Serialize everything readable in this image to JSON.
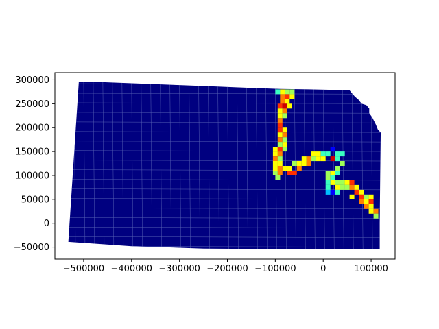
{
  "map": {
    "projection_extent": {
      "xlim": [
        -560000,
        150000
      ],
      "ylim": [
        -75000,
        315000
      ]
    },
    "colors": {
      "background": "#000080",
      "grid_lines": "#6b78c0",
      "axes": "#000000",
      "colormap": [
        "#000080",
        "#0000ff",
        "#00bfff",
        "#3affc0",
        "#a0ff58",
        "#ffff00",
        "#ff8000",
        "#ff3000",
        "#cc0000"
      ]
    },
    "outline": [
      [
        -510000,
        296000
      ],
      [
        -460000,
        295000
      ],
      [
        -380000,
        292000
      ],
      [
        -300000,
        289000
      ],
      [
        -220000,
        286000
      ],
      [
        -150000,
        283000
      ],
      [
        -90000,
        281000
      ],
      [
        -30000,
        280000
      ],
      [
        20000,
        279000
      ],
      [
        55000,
        278000
      ],
      [
        60000,
        272000
      ],
      [
        66000,
        265000
      ],
      [
        74000,
        258000
      ],
      [
        80000,
        250000
      ],
      [
        90000,
        247000
      ],
      [
        96000,
        240000
      ],
      [
        96000,
        230000
      ],
      [
        102000,
        222000
      ],
      [
        110000,
        206000
      ],
      [
        114000,
        196000
      ],
      [
        120000,
        190000
      ],
      [
        120000,
        185000
      ],
      [
        119000,
        100000
      ],
      [
        118000,
        0
      ],
      [
        118000,
        -54000
      ],
      [
        30000,
        -54000
      ],
      [
        -100000,
        -54000
      ],
      [
        -250000,
        -53000
      ],
      [
        -400000,
        -48000
      ],
      [
        -532000,
        -39000
      ]
    ],
    "corridor_cells": [
      {
        "x": -95000,
        "y": 275000,
        "v": 0.35
      },
      {
        "x": -85000,
        "y": 275000,
        "v": 0.65
      },
      {
        "x": -75000,
        "y": 275000,
        "v": 0.55
      },
      {
        "x": -65000,
        "y": 275000,
        "v": 0.45
      },
      {
        "x": -85000,
        "y": 265000,
        "v": 0.72
      },
      {
        "x": -75000,
        "y": 265000,
        "v": 0.85
      },
      {
        "x": -65000,
        "y": 265000,
        "v": 0.62
      },
      {
        "x": -85000,
        "y": 255000,
        "v": 0.78
      },
      {
        "x": -75000,
        "y": 255000,
        "v": 0.68
      },
      {
        "x": -90000,
        "y": 245000,
        "v": 0.88
      },
      {
        "x": -80000,
        "y": 245000,
        "v": 0.95
      },
      {
        "x": -70000,
        "y": 245000,
        "v": 0.6
      },
      {
        "x": -90000,
        "y": 235000,
        "v": 0.65
      },
      {
        "x": -80000,
        "y": 235000,
        "v": 0.8
      },
      {
        "x": -90000,
        "y": 225000,
        "v": 0.62
      },
      {
        "x": -80000,
        "y": 225000,
        "v": 0.52
      },
      {
        "x": -90000,
        "y": 215000,
        "v": 0.7
      },
      {
        "x": -90000,
        "y": 205000,
        "v": 0.82
      },
      {
        "x": -90000,
        "y": 195000,
        "v": 0.86
      },
      {
        "x": -80000,
        "y": 195000,
        "v": 0.6
      },
      {
        "x": -90000,
        "y": 185000,
        "v": 0.62
      },
      {
        "x": -80000,
        "y": 185000,
        "v": 0.72
      },
      {
        "x": -90000,
        "y": 175000,
        "v": 0.78
      },
      {
        "x": -80000,
        "y": 175000,
        "v": 0.55
      },
      {
        "x": -90000,
        "y": 165000,
        "v": 0.5
      },
      {
        "x": -80000,
        "y": 165000,
        "v": 0.62
      },
      {
        "x": -100000,
        "y": 155000,
        "v": 0.58
      },
      {
        "x": -90000,
        "y": 155000,
        "v": 0.88
      },
      {
        "x": -80000,
        "y": 155000,
        "v": 0.45
      },
      {
        "x": -100000,
        "y": 145000,
        "v": 0.62
      },
      {
        "x": -90000,
        "y": 145000,
        "v": 0.7
      },
      {
        "x": -100000,
        "y": 135000,
        "v": 0.72
      },
      {
        "x": -90000,
        "y": 135000,
        "v": 0.55
      },
      {
        "x": -100000,
        "y": 125000,
        "v": 0.6
      },
      {
        "x": -90000,
        "y": 125000,
        "v": 0.62
      },
      {
        "x": -100000,
        "y": 115000,
        "v": 0.58
      },
      {
        "x": -90000,
        "y": 115000,
        "v": 0.7
      },
      {
        "x": -100000,
        "y": 105000,
        "v": 0.48
      },
      {
        "x": -90000,
        "y": 105000,
        "v": 0.72
      },
      {
        "x": -95000,
        "y": 95000,
        "v": 0.55
      },
      {
        "x": -80000,
        "y": 115000,
        "v": 0.6
      },
      {
        "x": -70000,
        "y": 115000,
        "v": 0.68
      },
      {
        "x": -60000,
        "y": 125000,
        "v": 0.55
      },
      {
        "x": -50000,
        "y": 125000,
        "v": 0.6
      },
      {
        "x": -70000,
        "y": 105000,
        "v": 0.85
      },
      {
        "x": -60000,
        "y": 105000,
        "v": 0.88
      },
      {
        "x": -50000,
        "y": 115000,
        "v": 0.78
      },
      {
        "x": -40000,
        "y": 135000,
        "v": 0.62
      },
      {
        "x": -30000,
        "y": 135000,
        "v": 0.7
      },
      {
        "x": -20000,
        "y": 135000,
        "v": 0.55
      },
      {
        "x": -40000,
        "y": 125000,
        "v": 0.6
      },
      {
        "x": -30000,
        "y": 125000,
        "v": 0.72
      },
      {
        "x": -20000,
        "y": 145000,
        "v": 0.6
      },
      {
        "x": -10000,
        "y": 145000,
        "v": 0.65
      },
      {
        "x": 0,
        "y": 145000,
        "v": 0.42
      },
      {
        "x": -10000,
        "y": 135000,
        "v": 0.68
      },
      {
        "x": 0,
        "y": 135000,
        "v": 0.6
      },
      {
        "x": 10000,
        "y": 145000,
        "v": 0.35
      },
      {
        "x": 20000,
        "y": 155000,
        "v": 0.1
      },
      {
        "x": 20000,
        "y": 135000,
        "v": 0.95
      },
      {
        "x": 30000,
        "y": 135000,
        "v": 0.42
      },
      {
        "x": 30000,
        "y": 145000,
        "v": 0.38
      },
      {
        "x": 40000,
        "y": 145000,
        "v": 0.4
      },
      {
        "x": 40000,
        "y": 125000,
        "v": 0.55
      },
      {
        "x": 30000,
        "y": 115000,
        "v": 0.5
      },
      {
        "x": 10000,
        "y": 105000,
        "v": 0.45
      },
      {
        "x": 20000,
        "y": 105000,
        "v": 0.62
      },
      {
        "x": 30000,
        "y": 105000,
        "v": 0.35
      },
      {
        "x": 10000,
        "y": 95000,
        "v": 0.55
      },
      {
        "x": 20000,
        "y": 95000,
        "v": 0.42
      },
      {
        "x": 10000,
        "y": 85000,
        "v": 0.4
      },
      {
        "x": 20000,
        "y": 85000,
        "v": 0.62
      },
      {
        "x": 30000,
        "y": 85000,
        "v": 0.52
      },
      {
        "x": 40000,
        "y": 85000,
        "v": 0.45
      },
      {
        "x": 50000,
        "y": 85000,
        "v": 0.6
      },
      {
        "x": 10000,
        "y": 75000,
        "v": 0.35
      },
      {
        "x": 30000,
        "y": 75000,
        "v": 0.62
      },
      {
        "x": 40000,
        "y": 75000,
        "v": 0.45
      },
      {
        "x": 50000,
        "y": 75000,
        "v": 0.55
      },
      {
        "x": 60000,
        "y": 75000,
        "v": 0.78
      },
      {
        "x": 10000,
        "y": 65000,
        "v": 0.3
      },
      {
        "x": 20000,
        "y": 65000,
        "v": 0.15
      },
      {
        "x": 30000,
        "y": 65000,
        "v": 0.4
      },
      {
        "x": 60000,
        "y": 85000,
        "v": 0.82
      },
      {
        "x": 70000,
        "y": 75000,
        "v": 0.62
      },
      {
        "x": 70000,
        "y": 65000,
        "v": 0.9
      },
      {
        "x": 80000,
        "y": 65000,
        "v": 0.6
      },
      {
        "x": 60000,
        "y": 55000,
        "v": 0.68
      },
      {
        "x": 80000,
        "y": 55000,
        "v": 0.82
      },
      {
        "x": 90000,
        "y": 55000,
        "v": 0.55
      },
      {
        "x": 100000,
        "y": 55000,
        "v": 0.62
      },
      {
        "x": 80000,
        "y": 45000,
        "v": 0.75
      },
      {
        "x": 90000,
        "y": 45000,
        "v": 0.6
      },
      {
        "x": 100000,
        "y": 45000,
        "v": 0.85
      },
      {
        "x": 90000,
        "y": 35000,
        "v": 0.78
      },
      {
        "x": 100000,
        "y": 35000,
        "v": 0.62
      },
      {
        "x": 100000,
        "y": 25000,
        "v": 0.65
      },
      {
        "x": 110000,
        "y": 25000,
        "v": 0.72
      },
      {
        "x": 110000,
        "y": 15000,
        "v": 0.45
      }
    ],
    "x_ticks": [
      {
        "value": -500000,
        "label": "−500000"
      },
      {
        "value": -400000,
        "label": "−400000"
      },
      {
        "value": -300000,
        "label": "−300000"
      },
      {
        "value": -200000,
        "label": "−200000"
      },
      {
        "value": -100000,
        "label": "−100000"
      },
      {
        "value": 0,
        "label": "0"
      },
      {
        "value": 100000,
        "label": "100000"
      }
    ],
    "y_ticks": [
      {
        "value": -50000,
        "label": "−50000"
      },
      {
        "value": 0,
        "label": "0"
      },
      {
        "value": 50000,
        "label": "50000"
      },
      {
        "value": 100000,
        "label": "100000"
      },
      {
        "value": 150000,
        "label": "150000"
      },
      {
        "value": 200000,
        "label": "200000"
      },
      {
        "value": 250000,
        "label": "250000"
      },
      {
        "value": 300000,
        "label": "300000"
      }
    ]
  }
}
